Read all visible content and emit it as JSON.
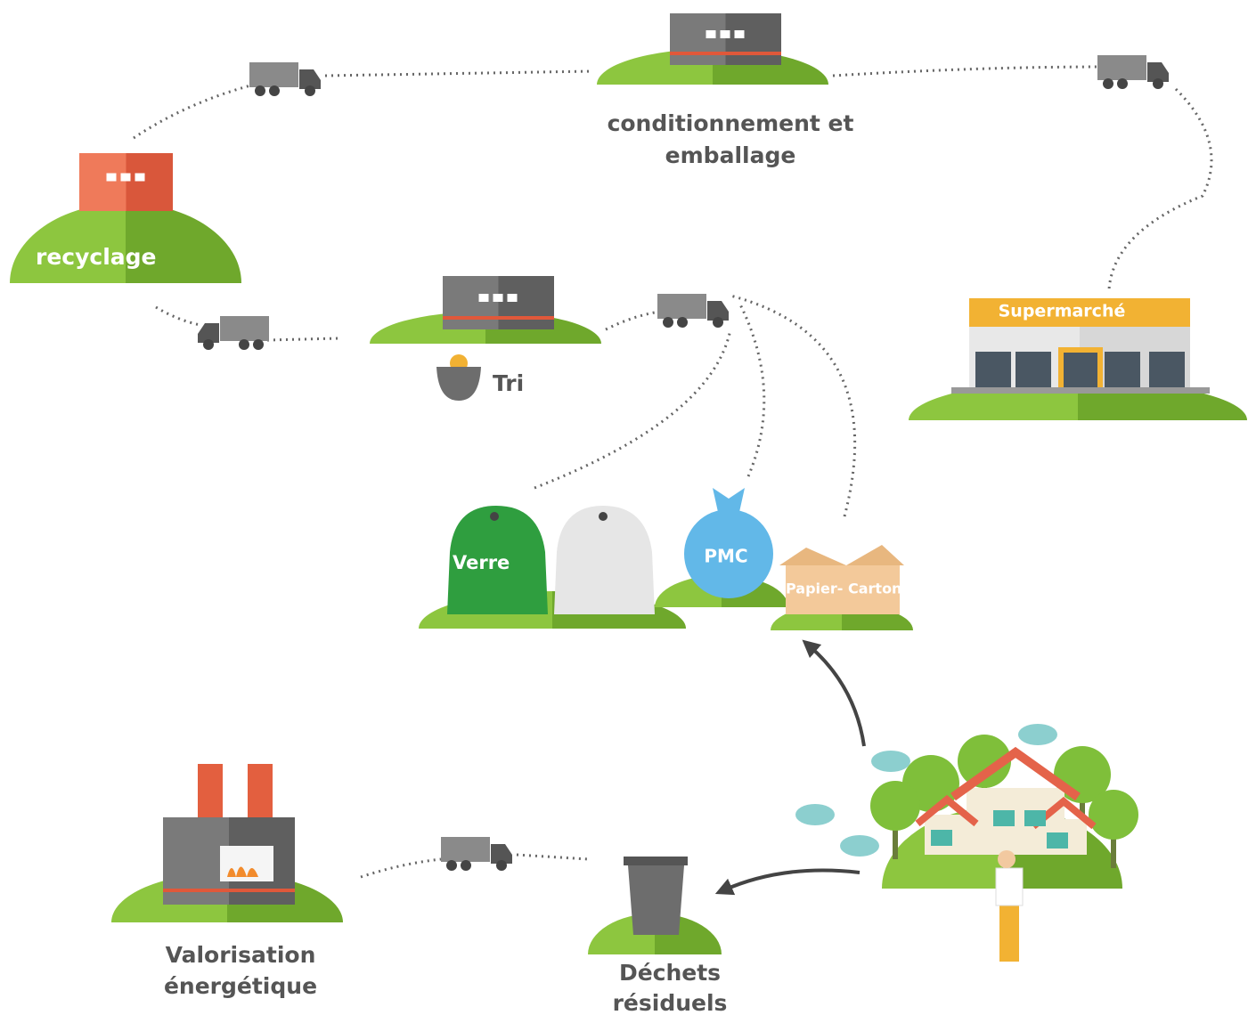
{
  "labels": {
    "packaging": [
      "conditionnement et",
      "emballage"
    ],
    "recycling": "recyclage",
    "sorting": "Tri",
    "supermarket": "Supermarché",
    "glass": "Verre",
    "pmc": "PMC",
    "paper": "Papier- Carton",
    "energy": [
      "Valorisation",
      "énergétique"
    ],
    "residual": [
      "Déchets",
      "résiduels"
    ]
  }
}
